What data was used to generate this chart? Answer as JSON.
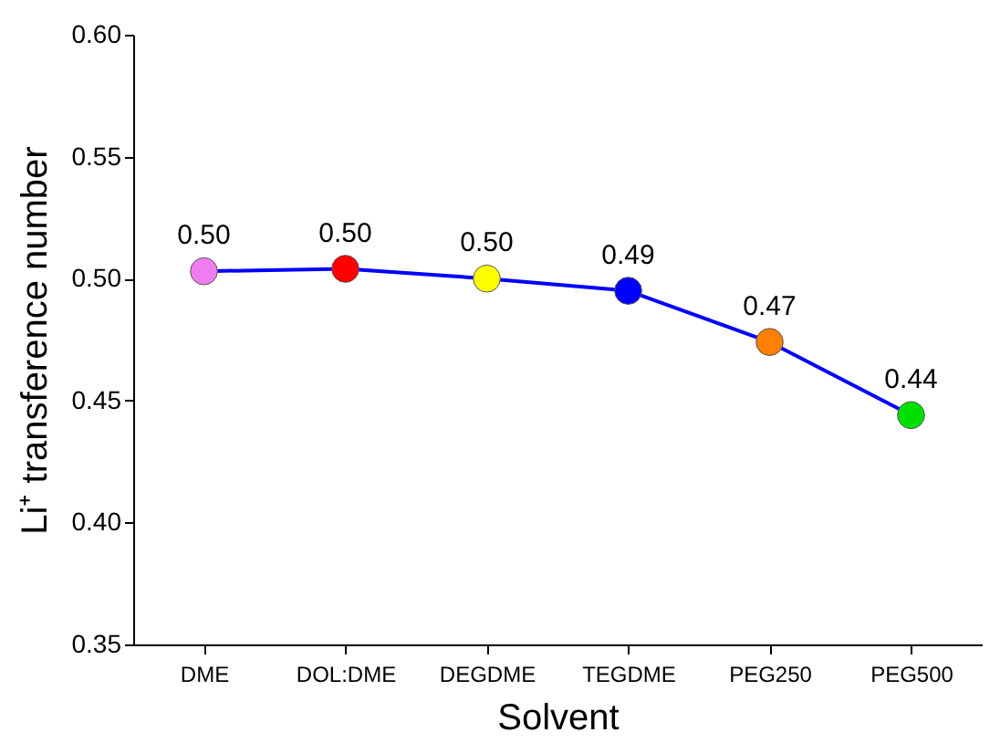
{
  "chart_data": {
    "type": "line",
    "xlabel": "Solvent",
    "ylabel": "Li⁺ transference number",
    "categories": [
      "DME",
      "DOL:DME",
      "DEGDME",
      "TEGDME",
      "PEG250",
      "PEG500"
    ],
    "series": [
      {
        "color": "#0000ff",
        "values": [
          0.503,
          0.504,
          0.5,
          0.495,
          0.474,
          0.444
        ],
        "colors": [
          "#f07cf0",
          "#ff0000",
          "#ffff00",
          "#0000ff",
          "#ff8000",
          "#00e000"
        ],
        "value_labels": [
          "0.50",
          "0.50",
          "0.50",
          "0.49",
          "0.47",
          "0.44"
        ]
      }
    ],
    "ylim": [
      0.35,
      0.6
    ],
    "yticks": [
      0.35,
      {
        "value": 0.4,
        "label": "0.40"
      },
      0.45,
      {
        "value": 0.5,
        "label": "0.50"
      },
      0.55,
      {
        "value": 0.6,
        "label": "0.60"
      }
    ],
    "marker": "circle",
    "line_style": "solid",
    "grid": false
  }
}
